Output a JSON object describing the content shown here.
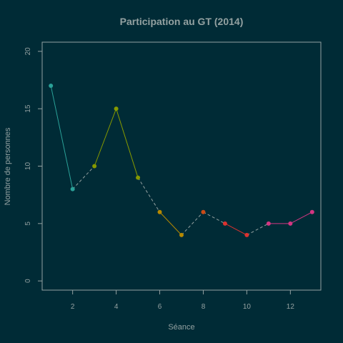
{
  "chart_data": {
    "type": "line",
    "title": "Participation au GT (2014)",
    "xlabel": "Séance",
    "ylabel": "Nombre de personnes",
    "xlim": [
      0.6,
      13.4
    ],
    "ylim": [
      -0.8,
      20.8
    ],
    "x_ticks": [
      2,
      4,
      6,
      8,
      10,
      12
    ],
    "y_ticks": [
      0,
      5,
      10,
      15,
      20
    ],
    "x": [
      1,
      2,
      3,
      4,
      5,
      6,
      7,
      8,
      9,
      10,
      11,
      12,
      13
    ],
    "y": [
      17,
      8,
      10,
      15,
      9,
      6,
      4,
      6,
      5,
      4,
      5,
      5,
      6
    ],
    "point_colors": [
      "#2aa198",
      "#2aa198",
      "#859900",
      "#859900",
      "#859900",
      "#b58900",
      "#b58900",
      "#cb4b16",
      "#dc322f",
      "#dc322f",
      "#d33682",
      "#d33682",
      "#d33682"
    ],
    "segments": [
      {
        "from": 0,
        "to": 1,
        "style": "solid",
        "color": "#2aa198"
      },
      {
        "from": 1,
        "to": 2,
        "style": "dashed",
        "color": "#93a1a1"
      },
      {
        "from": 2,
        "to": 3,
        "style": "solid",
        "color": "#859900"
      },
      {
        "from": 3,
        "to": 4,
        "style": "solid",
        "color": "#859900"
      },
      {
        "from": 4,
        "to": 5,
        "style": "dashed",
        "color": "#93a1a1"
      },
      {
        "from": 5,
        "to": 6,
        "style": "solid",
        "color": "#b58900"
      },
      {
        "from": 6,
        "to": 7,
        "style": "dashed",
        "color": "#93a1a1"
      },
      {
        "from": 7,
        "to": 8,
        "style": "dashed",
        "color": "#93a1a1"
      },
      {
        "from": 8,
        "to": 9,
        "style": "solid",
        "color": "#dc322f"
      },
      {
        "from": 9,
        "to": 10,
        "style": "dashed",
        "color": "#93a1a1"
      },
      {
        "from": 10,
        "to": 11,
        "style": "solid",
        "color": "#d33682"
      },
      {
        "from": 11,
        "to": 12,
        "style": "solid",
        "color": "#d33682"
      }
    ],
    "grid": false,
    "legend": "none",
    "background_color": "#002b36",
    "text_color": "#93a1a1"
  }
}
